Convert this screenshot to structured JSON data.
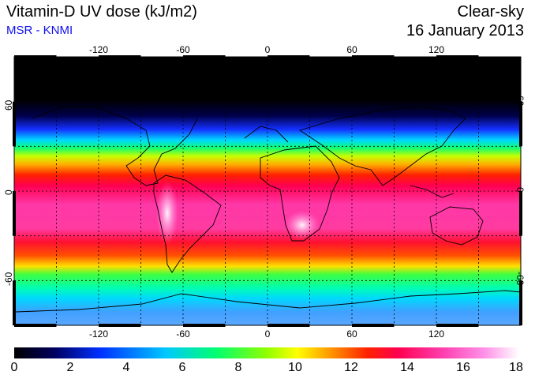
{
  "header": {
    "title": "Vitamin-D UV dose (kJ/m2)",
    "source": "MSR - KNMI",
    "sky_condition": "Clear-sky",
    "date": "16 January 2013"
  },
  "map": {
    "lon_ticks": [
      "-120",
      "-60",
      "0",
      "60",
      "120"
    ],
    "lat_ticks": [
      "60",
      "0",
      "-60"
    ],
    "lon_range": [
      -180,
      180
    ],
    "lat_range": [
      -90,
      90
    ],
    "gridlines": "dotted every 30 degrees"
  },
  "colorbar": {
    "min": 0,
    "max": 18,
    "labels": [
      "0",
      "2",
      "4",
      "6",
      "8",
      "10",
      "12",
      "14",
      "16",
      "18"
    ],
    "stops": [
      "#000000",
      "#000060",
      "#0030ff",
      "#00c8ff",
      "#00ff70",
      "#90ff00",
      "#ffff00",
      "#ffa000",
      "#ff2000",
      "#ff0050",
      "#ff40b0",
      "#ff90e8",
      "#ffffff"
    ]
  }
}
